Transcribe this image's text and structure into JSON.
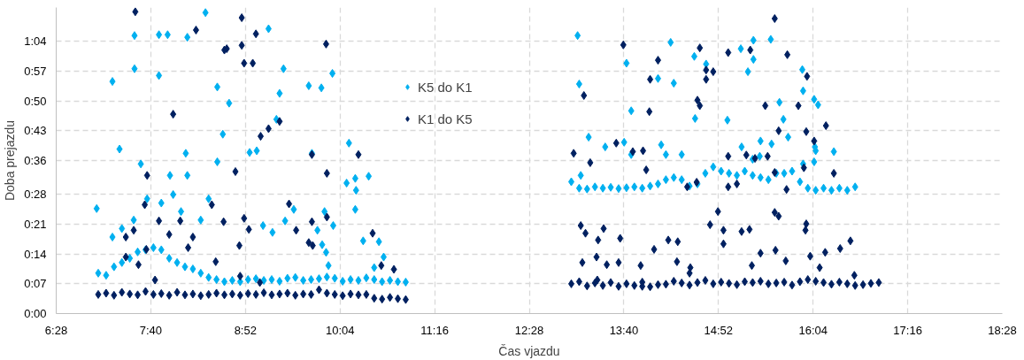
{
  "chart_data": {
    "type": "scatter",
    "xlabel": "Čas vjazdu",
    "ylabel": "Doba prejazdu",
    "xlim": [
      6.4667,
      18.4667
    ],
    "xticks": [
      {
        "value": 6.4667,
        "label": "6:28"
      },
      {
        "value": 7.6667,
        "label": "7:40"
      },
      {
        "value": 8.8667,
        "label": "8:52"
      },
      {
        "value": 10.0667,
        "label": "10:04"
      },
      {
        "value": 11.2667,
        "label": "11:16"
      },
      {
        "value": 12.4667,
        "label": "12:28"
      },
      {
        "value": 13.6667,
        "label": "13:40"
      },
      {
        "value": 14.8667,
        "label": "14:52"
      },
      {
        "value": 16.0667,
        "label": "16:04"
      },
      {
        "value": 17.2667,
        "label": "17:16"
      },
      {
        "value": 18.4667,
        "label": "18:28"
      }
    ],
    "ylim": [
      0,
      72
    ],
    "yticks": [
      {
        "value": 0,
        "label": "0:00"
      },
      {
        "value": 7,
        "label": "0:07"
      },
      {
        "value": 14,
        "label": "0:14"
      },
      {
        "value": 21,
        "label": "0:21"
      },
      {
        "value": 28,
        "label": "0:28"
      },
      {
        "value": 36,
        "label": "0:36"
      },
      {
        "value": 43,
        "label": "0:43"
      },
      {
        "value": 50,
        "label": "0:50"
      },
      {
        "value": 57,
        "label": "0:57"
      },
      {
        "value": 64,
        "label": "1:04"
      }
    ],
    "grid": true,
    "legend": "top",
    "marker": "diamond",
    "series": [
      {
        "name": "K5 do K1",
        "color": "#00b0f0",
        "x": [
          7.0,
          7.1,
          7.2,
          7.3,
          7.4,
          7.5,
          7.6,
          7.7,
          7.8,
          7.9,
          8.0,
          8.1,
          8.2,
          8.3,
          8.4,
          8.5,
          8.6,
          8.7,
          8.8,
          8.9,
          9.0,
          9.1,
          9.2,
          9.3,
          9.4,
          9.5,
          9.6,
          9.7,
          9.8,
          9.9,
          10.0,
          10.1,
          10.2,
          10.3,
          10.4,
          10.5,
          10.6,
          10.7,
          10.8,
          10.9,
          6.98,
          7.18,
          7.18,
          7.27,
          7.46,
          7.46,
          7.77,
          7.88,
          8.13,
          8.36,
          7.77,
          8.51,
          8.66,
          8.58,
          8.11,
          7.54,
          7.91,
          8.13,
          8.51,
          9.16,
          9.35,
          9.3,
          9.67,
          9.83,
          9.97,
          9.26,
          8.92,
          9.01,
          9.71,
          10.18,
          10.15,
          10.26,
          10.27,
          10.43,
          9.87,
          9.48,
          9.09,
          9.21,
          9.37,
          9.78,
          9.89,
          9.84,
          10.26,
          9.98,
          10.36,
          10.56,
          10.62,
          10.5,
          9.92,
          7.62,
          7.8,
          7.95,
          8.05,
          8.3,
          8.4,
          7.45,
          7.3,
          13.0,
          13.1,
          13.2,
          13.3,
          13.4,
          13.5,
          13.6,
          13.7,
          13.8,
          13.9,
          14.0,
          14.1,
          14.2,
          14.3,
          14.4,
          14.5,
          14.6,
          14.7,
          14.8,
          14.9,
          15.0,
          15.1,
          15.2,
          15.3,
          15.4,
          15.5,
          15.6,
          15.7,
          15.8,
          15.9,
          16.0,
          16.1,
          16.2,
          16.3,
          16.4,
          16.5,
          16.6,
          13.08,
          13.1,
          13.22,
          13.7,
          14.26,
          14.1,
          14.3,
          13.76,
          14.57,
          14.98,
          13.67,
          13.76,
          14.14,
          14.2,
          13.12,
          13.43,
          14.4,
          14.56,
          14.71,
          15.15,
          15.31,
          15.31,
          15.24,
          15.53,
          15.93,
          15.94,
          16.08,
          16.13,
          15.64,
          15.69,
          15.75,
          15.4,
          15.54,
          15.39,
          15.3,
          15.16,
          16.09,
          16.1,
          16.08,
          16.33,
          15.94
        ],
        "values": [
          9.5,
          9,
          11,
          12,
          13,
          14.5,
          15,
          15.5,
          15,
          13,
          12,
          11,
          10.5,
          9.5,
          8.5,
          8,
          7.5,
          7.8,
          7.5,
          8,
          8.2,
          7.8,
          8,
          7.6,
          8.3,
          8.5,
          7.8,
          8,
          8.2,
          8.6,
          8.3,
          7.6,
          8,
          7.8,
          8.4,
          8,
          7.5,
          7.8,
          7.5,
          7.4,
          24.7,
          18.0,
          54.6,
          38.7,
          65.4,
          57.6,
          65.6,
          65.6,
          65.0,
          70.8,
          56.0,
          53.3,
          49.5,
          42.2,
          37.7,
          35.2,
          32.5,
          32.5,
          35.7,
          67.0,
          57.6,
          51.8,
          53.6,
          53.1,
          56.5,
          45.7,
          37.9,
          38.3,
          37.7,
          40.1,
          30.7,
          31.8,
          29.0,
          32.3,
          24.0,
          24.5,
          20.7,
          19.1,
          21.8,
          19.6,
          14.4,
          16.2,
          24.5,
          20.7,
          17.1,
          16.9,
          13.3,
          10.8,
          11.3,
          27,
          26,
          28,
          24,
          22,
          27,
          22,
          20,
          31,
          29.5,
          29.3,
          29.8,
          29.5,
          29.7,
          29.4,
          29.6,
          29.8,
          29.5,
          30,
          30.5,
          31.5,
          32,
          31.5,
          30,
          30.5,
          33,
          34.5,
          33.5,
          33,
          32.5,
          33.5,
          32.5,
          32,
          31.5,
          33,
          33,
          33.5,
          31,
          29.5,
          29,
          29.5,
          29,
          29.5,
          29,
          29.8,
          65.4,
          54.0,
          41.5,
          58.9,
          63.8,
          55.3,
          54.2,
          47.7,
          45.9,
          45.5,
          40.3,
          37.4,
          39.7,
          37.4,
          32.5,
          39.2,
          37.4,
          60.5,
          58.7,
          62.3,
          64.3,
          59.8,
          56.9,
          64.5,
          57.4,
          52.4,
          50.4,
          49.1,
          49.7,
          45.7,
          41.5,
          40.6,
          39.9,
          37.0,
          36.3,
          39.2,
          39.2,
          38.3,
          35.7,
          38.1,
          35.2
        ]
      },
      {
        "name": "K1 do K5",
        "color": "#002060",
        "x": [
          7.0,
          7.1,
          7.2,
          7.3,
          7.4,
          7.5,
          7.6,
          7.7,
          7.8,
          7.9,
          8.0,
          8.1,
          8.2,
          8.3,
          8.4,
          8.5,
          8.6,
          8.7,
          8.8,
          8.9,
          9.0,
          9.1,
          9.2,
          9.3,
          9.4,
          9.5,
          9.6,
          9.7,
          9.8,
          9.9,
          10.0,
          10.1,
          10.2,
          10.3,
          10.4,
          10.5,
          10.6,
          10.7,
          10.8,
          10.9,
          7.47,
          8.24,
          8.6,
          8.82,
          8.82,
          8.85,
          8.96,
          9.0,
          8.63,
          7.95,
          9.89,
          9.06,
          9.16,
          9.3,
          9.71,
          10.3,
          9.9,
          7.62,
          7.59,
          8.44,
          8.74,
          8.85,
          7.77,
          8.04,
          7.45,
          7.9,
          7.35,
          8.2,
          8.14,
          8.59,
          8.91,
          9.42,
          9.71,
          9.9,
          9.51,
          10.48,
          10.59,
          10.75,
          7.35,
          7.61,
          8.79,
          9.67,
          9.72,
          8.49,
          8.8,
          9.05,
          7.72,
          7.51,
          13.0,
          13.1,
          13.2,
          13.3,
          13.4,
          13.5,
          13.6,
          13.7,
          13.8,
          13.9,
          14.0,
          14.1,
          14.2,
          14.3,
          14.4,
          14.5,
          14.6,
          14.7,
          14.8,
          14.9,
          15.0,
          15.1,
          15.2,
          15.3,
          15.4,
          15.5,
          15.6,
          15.7,
          15.8,
          15.9,
          16.0,
          16.1,
          16.2,
          16.3,
          16.4,
          16.5,
          16.6,
          16.7,
          16.8,
          16.9,
          13.66,
          14.1,
          14.0,
          13.16,
          13.99,
          14.63,
          14.71,
          14.8,
          14.71,
          14.6,
          14.63,
          14.99,
          15.58,
          15.27,
          15.74,
          15.99,
          15.46,
          15.88,
          16.23,
          15.63,
          15.98,
          16.08,
          13.03,
          13.24,
          13.57,
          13.78,
          13.91,
          13.95,
          14.47,
          14.59,
          14.99,
          14.99,
          15.1,
          15.49,
          15.22,
          15.33,
          15.58,
          15.73,
          15.95,
          16.33,
          14.86,
          15.58,
          15.63,
          15.98,
          13.12,
          13.18,
          13.41,
          13.34,
          13.62,
          14.23,
          14.35,
          14.76,
          14.93,
          14.93,
          15.16,
          15.26,
          15.97,
          16.22,
          16.54,
          16.41,
          15.4,
          15.59,
          15.72,
          15.29,
          16.03,
          16.15,
          16.59,
          13.33,
          13.14,
          13.32,
          13.45,
          13.6,
          13.88,
          14.05,
          14.34,
          14.51,
          14.5,
          13.9
        ],
        "values": [
          4.5,
          4.8,
          4.3,
          5.0,
          4.6,
          4.4,
          5.2,
          4.5,
          4.7,
          4.3,
          5.0,
          4.4,
          4.6,
          4.2,
          4.5,
          4.8,
          4.4,
          4.6,
          4.3,
          4.7,
          4.5,
          4.9,
          4.4,
          4.6,
          4.8,
          4.3,
          4.6,
          4.5,
          5.6,
          4.8,
          4.5,
          4.2,
          4.6,
          4.4,
          4.5,
          3.6,
          3.4,
          3.8,
          3.5,
          3.3,
          71.0,
          66.7,
          62.0,
          69.6,
          63.1,
          58.9,
          58.9,
          65.8,
          62.3,
          46.9,
          63.4,
          41.7,
          43.5,
          45.2,
          37.4,
          37.4,
          33.0,
          32.5,
          25.6,
          25.6,
          33.4,
          22.4,
          21.8,
          21.8,
          19.6,
          18.6,
          18.0,
          18.0,
          15.5,
          21.6,
          19.8,
          25.8,
          21.6,
          22.7,
          19.6,
          18.9,
          11.3,
          10.4,
          13.3,
          15.1,
          16.0,
          16.7,
          16.0,
          12.2,
          8.8,
          7.3,
          7.9,
          11.5,
          7.0,
          7.5,
          6.5,
          7.2,
          6.6,
          7.3,
          6.4,
          7.0,
          6.6,
          7.4,
          6.3,
          6.8,
          6.9,
          7.6,
          7.2,
          6.7,
          7.3,
          7.8,
          7.0,
          7.4,
          7.1,
          6.8,
          7.5,
          7.3,
          7.6,
          7.0,
          7.2,
          7.4,
          6.7,
          7.5,
          8.0,
          7.6,
          7.3,
          6.9,
          7.4,
          7.0,
          6.6,
          6.8,
          7.1,
          7.3,
          63.2,
          59.6,
          55.1,
          51.3,
          47.5,
          62.5,
          57.3,
          56.9,
          55.1,
          50.2,
          48.9,
          61.4,
          69.4,
          62.0,
          60.9,
          55.8,
          48.9,
          48.9,
          44.2,
          43.0,
          42.8,
          40.6,
          37.7,
          35.5,
          40.1,
          38.1,
          38.3,
          33.8,
          29.8,
          30.9,
          37.0,
          29.8,
          30.5,
          37.0,
          37.3,
          36.5,
          33.2,
          29.2,
          34.3,
          33.0,
          24.0,
          23.8,
          22.9,
          21.1,
          20.7,
          18.9,
          20.0,
          17.3,
          17.7,
          17.3,
          16.9,
          20.9,
          19.6,
          16.4,
          19.3,
          19.8,
          19.6,
          14.4,
          17.1,
          15.3,
          14.2,
          14.9,
          12.4,
          11.3,
          13.5,
          10.8,
          9.0,
          7.9,
          12.0,
          13.3,
          11.5,
          12.0,
          11.3,
          15.1,
          12.2,
          10.8,
          9.5,
          6.4
        ]
      }
    ]
  }
}
